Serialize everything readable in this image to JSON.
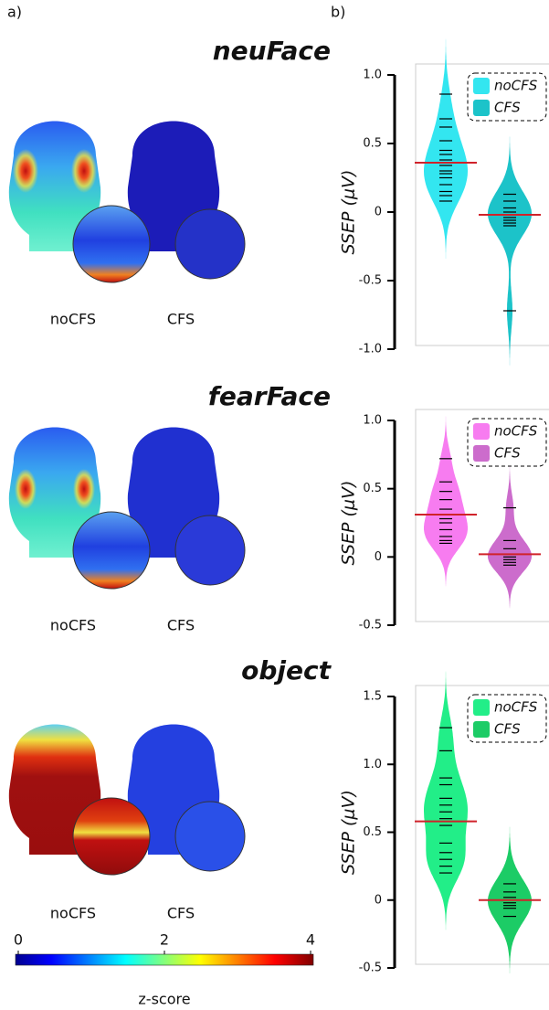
{
  "panel_labels": [
    "a)",
    "b)"
  ],
  "colorbar": {
    "label": "z-score",
    "lim": [
      0,
      4
    ],
    "ticks": [
      0,
      2,
      4
    ]
  },
  "chart_data": [
    {
      "type": "violin",
      "title": "neuFace",
      "topomap_labels": [
        "noCFS",
        "CFS"
      ],
      "ylabel": "SSEP (μV)",
      "ylim": [
        -1,
        1
      ],
      "yticks": [
        {
          "value": 1,
          "label": "1.0"
        },
        0.5,
        0,
        -0.5,
        {
          "value": -1,
          "label": "-1.0"
        }
      ],
      "mean_color": "#d0222a",
      "series": [
        {
          "name": "noCFS",
          "color": "#33e6f0",
          "mean": 0.36,
          "values": [
            0.86,
            0.68,
            0.62,
            0.52,
            0.45,
            0.42,
            0.38,
            0.34,
            0.3,
            0.28,
            0.25,
            0.2,
            0.15,
            0.12,
            0.08
          ]
        },
        {
          "name": "CFS",
          "color": "#1cc3c9",
          "mean": -0.02,
          "values": [
            0.13,
            0.08,
            0.03,
            0,
            -0.02,
            -0.04,
            -0.06,
            -0.08,
            -0.1,
            -0.72
          ]
        }
      ]
    },
    {
      "type": "violin",
      "title": "fearFace",
      "topomap_labels": [
        "noCFS",
        "CFS"
      ],
      "ylabel": "SSEP (μV)",
      "ylim": [
        -0.5,
        1
      ],
      "yticks": [
        {
          "value": 1,
          "label": "1.0"
        },
        0.5,
        0,
        -0.5
      ],
      "mean_color": "#d0222a",
      "series": [
        {
          "name": "noCFS",
          "color": "#f77cf0",
          "mean": 0.31,
          "values": [
            0.72,
            0.55,
            0.48,
            0.42,
            0.35,
            0.28,
            0.25,
            0.2,
            0.15,
            0.12,
            0.1
          ]
        },
        {
          "name": "CFS",
          "color": "#cc6ccc",
          "mean": 0.02,
          "values": [
            0.36,
            0.12,
            0.06,
            0.02,
            0,
            -0.02,
            -0.04,
            -0.06
          ]
        }
      ]
    },
    {
      "type": "violin",
      "title": "object",
      "topomap_labels": [
        "noCFS",
        "CFS"
      ],
      "ylabel": "SSEP (μV)",
      "ylim": [
        -0.5,
        1.5
      ],
      "yticks": [
        1.5,
        {
          "value": 1,
          "label": "1.0"
        },
        0.5,
        0,
        -0.5
      ],
      "mean_color": "#d0222a",
      "series": [
        {
          "name": "noCFS",
          "color": "#22ee88",
          "mean": 0.58,
          "values": [
            1.27,
            1.1,
            0.9,
            0.85,
            0.75,
            0.7,
            0.65,
            0.6,
            0.55,
            0.42,
            0.35,
            0.3,
            0.25,
            0.2
          ]
        },
        {
          "name": "CFS",
          "color": "#1ccc66",
          "mean": 0,
          "values": [
            0.12,
            0.06,
            0.02,
            0,
            -0.02,
            -0.04,
            -0.06,
            -0.12
          ]
        }
      ]
    }
  ]
}
